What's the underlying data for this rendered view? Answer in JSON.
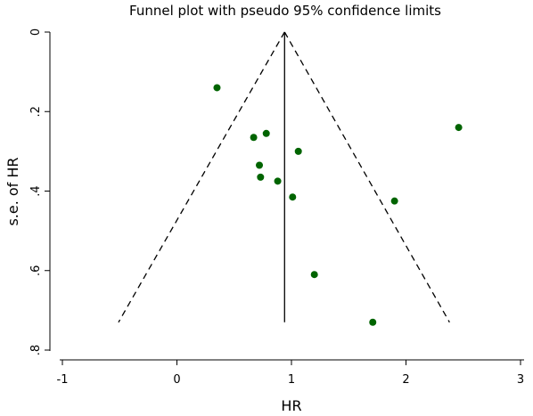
{
  "chart_data": {
    "type": "scatter",
    "title": "Funnel plot with pseudo 95% confidence limits",
    "xlabel": "HR",
    "ylabel": "s.e. of HR",
    "xlim": [
      -1,
      3
    ],
    "ylim": [
      0,
      0.8
    ],
    "y_inverted": true,
    "grid": false,
    "legend": "none",
    "x_ticks": [
      {
        "value": -1,
        "label": "-1"
      },
      {
        "value": 0,
        "label": "0"
      },
      {
        "value": 1,
        "label": "1"
      },
      {
        "value": 2,
        "label": "2"
      },
      {
        "value": 3,
        "label": "3"
      }
    ],
    "y_ticks": [
      {
        "value": 0,
        "label": "0"
      },
      {
        "value": 0.2,
        "label": ".2"
      },
      {
        "value": 0.4,
        "label": ".4"
      },
      {
        "value": 0.6,
        "label": ".6"
      },
      {
        "value": 0.8,
        "label": ".8"
      }
    ],
    "pooled_estimate": 0.94,
    "funnel_limits": {
      "left": [
        {
          "x": 0.94,
          "y": 0
        },
        {
          "x": -0.51,
          "y": 0.73
        }
      ],
      "right": [
        {
          "x": 0.94,
          "y": 0
        },
        {
          "x": 2.38,
          "y": 0.73
        }
      ]
    },
    "points": [
      {
        "x": 0.35,
        "y": 0.14
      },
      {
        "x": 2.46,
        "y": 0.24
      },
      {
        "x": 0.78,
        "y": 0.255
      },
      {
        "x": 0.67,
        "y": 0.265
      },
      {
        "x": 1.06,
        "y": 0.3
      },
      {
        "x": 0.72,
        "y": 0.335
      },
      {
        "x": 0.73,
        "y": 0.365
      },
      {
        "x": 0.88,
        "y": 0.375
      },
      {
        "x": 1.01,
        "y": 0.415
      },
      {
        "x": 1.9,
        "y": 0.425
      },
      {
        "x": 1.2,
        "y": 0.61
      },
      {
        "x": 1.71,
        "y": 0.73
      }
    ],
    "colors": {
      "points": "#006400",
      "lines": "#000000"
    }
  }
}
